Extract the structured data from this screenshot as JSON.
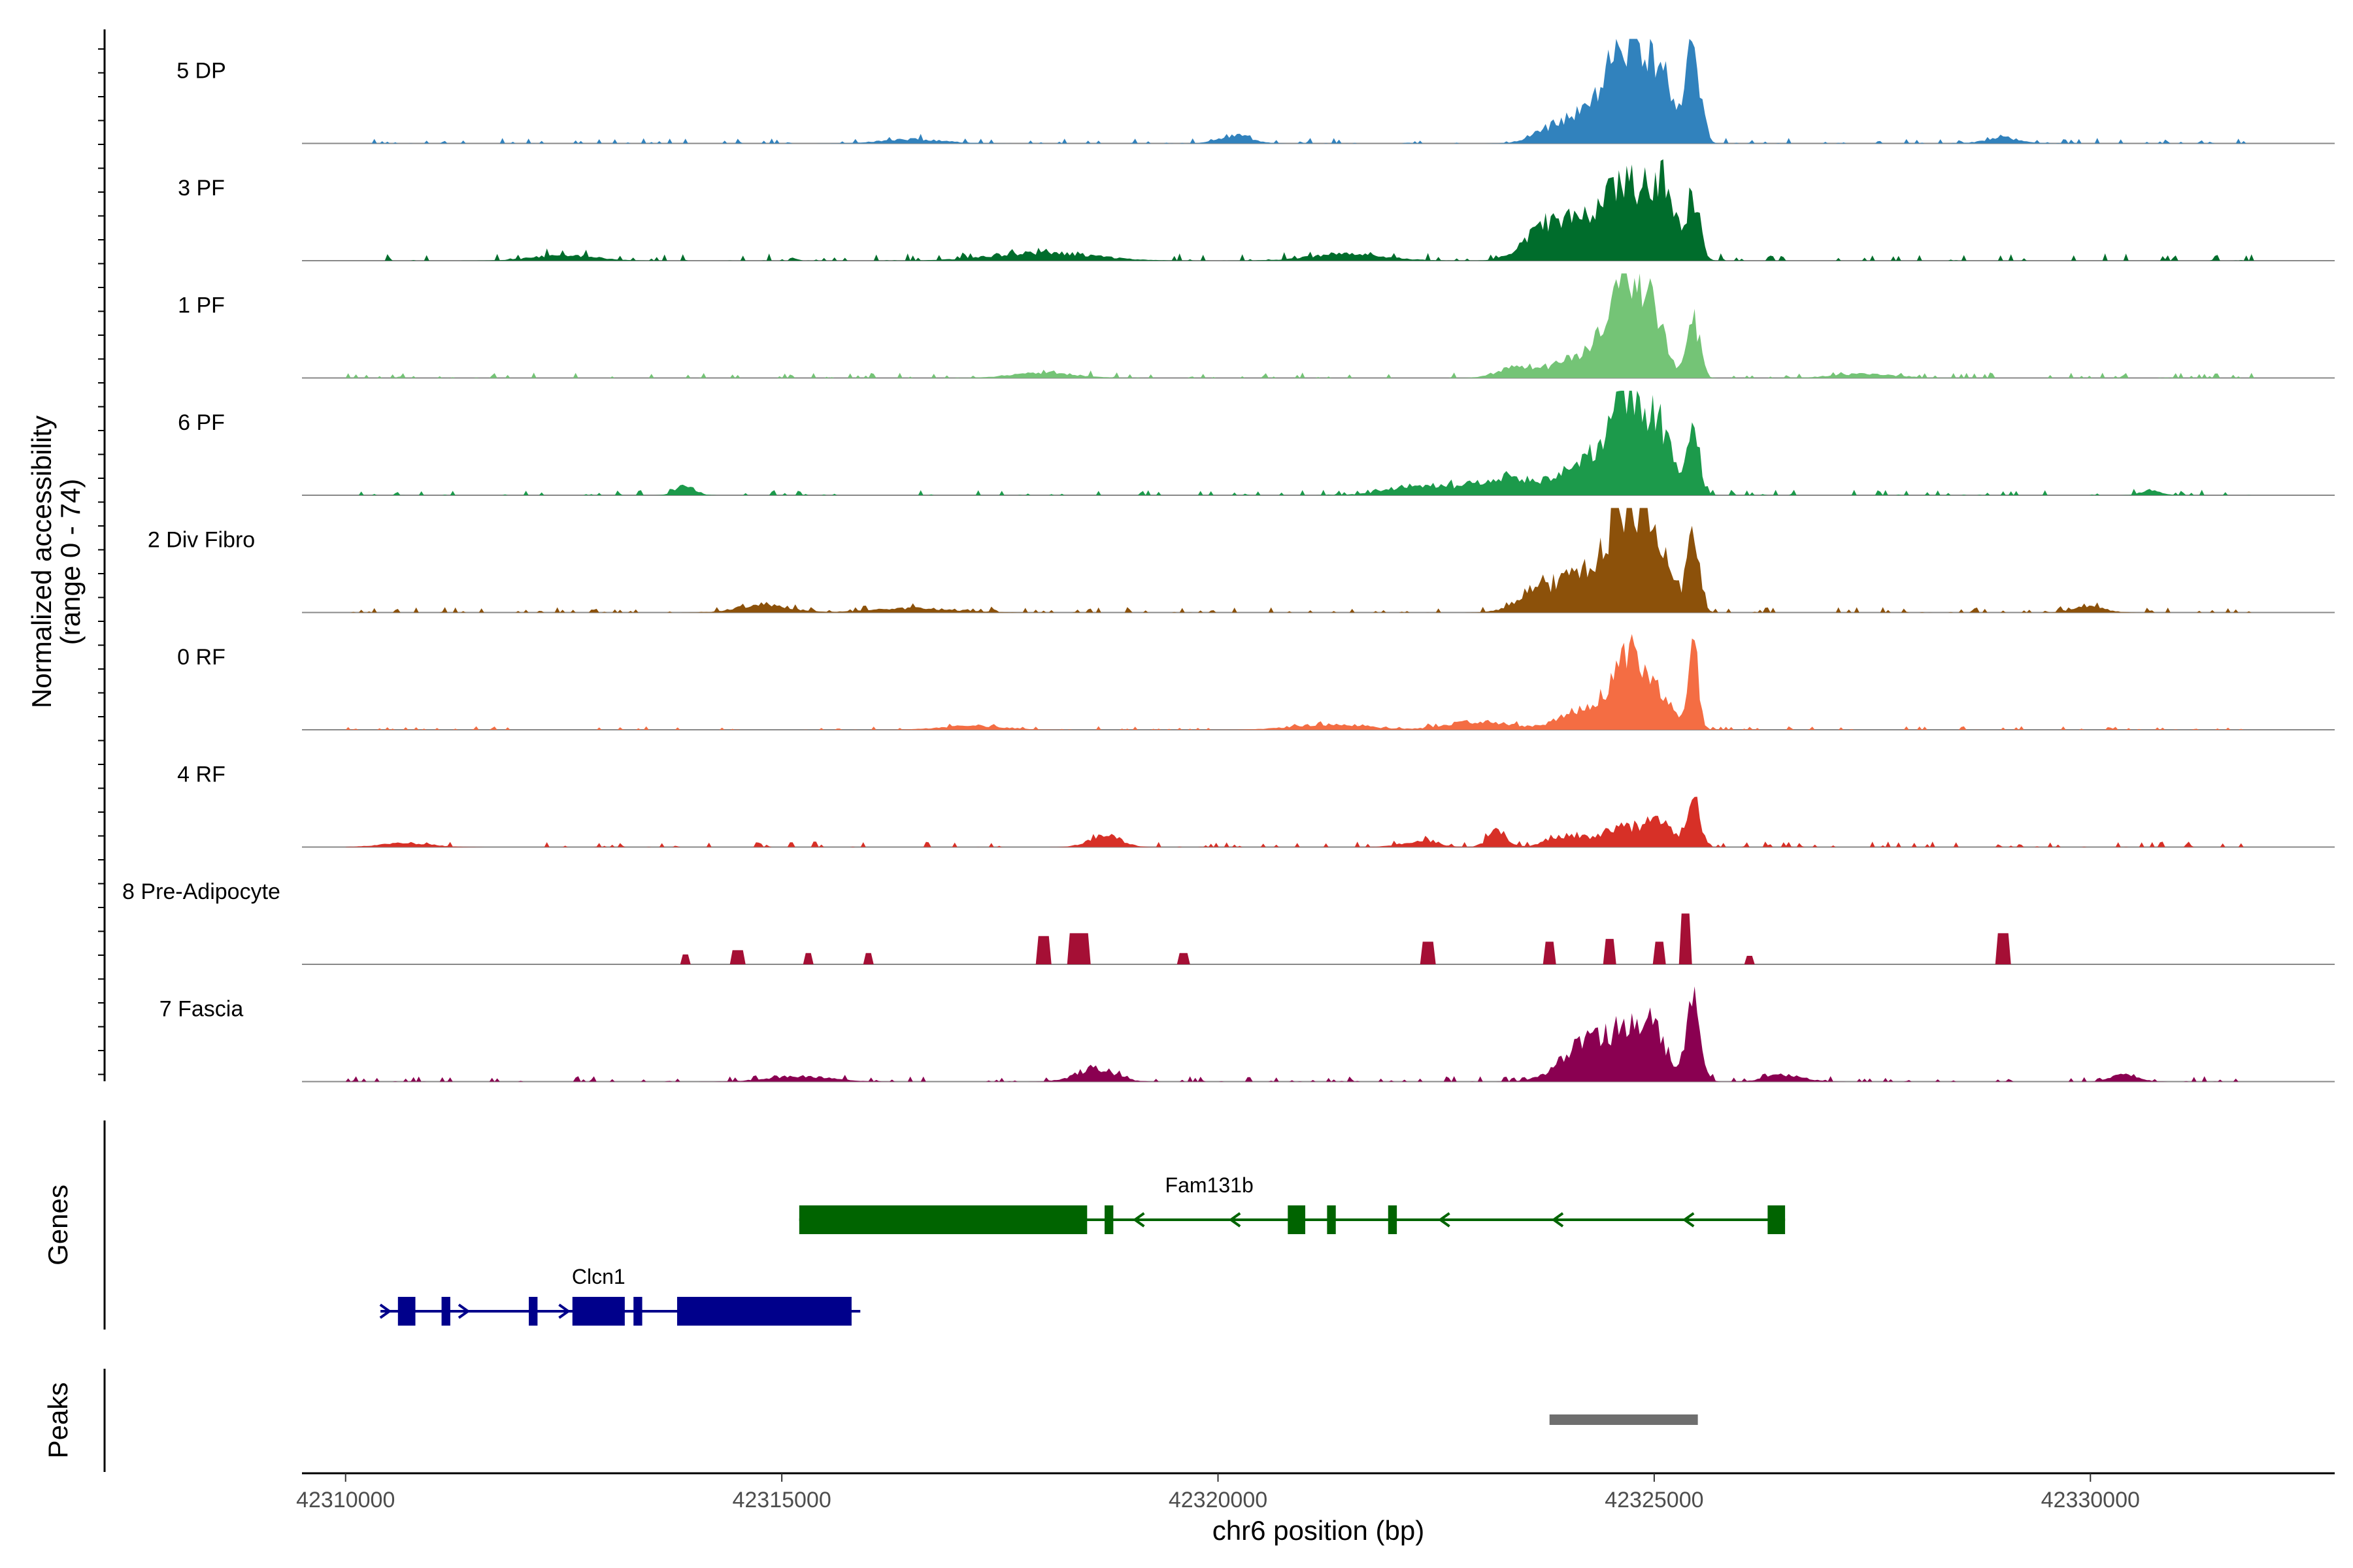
{
  "chart_data": {
    "type": "coverage",
    "region": {
      "chrom": "chr6",
      "start": 42309500,
      "end": 42332800
    },
    "x_axis": {
      "label": "chr6 position (bp)",
      "ticks": [
        42310000,
        42315000,
        42320000,
        42325000,
        42330000
      ],
      "tick_labels": [
        "42310000",
        "42315000",
        "42320000",
        "42325000",
        "42330000"
      ]
    },
    "y_axis": {
      "label_line1": "Normalized accessibility",
      "label_line2": "(range 0 - 74)",
      "range": [
        0,
        74
      ]
    },
    "tracks": [
      {
        "name": "5 DP",
        "color": "#3182bd",
        "bg": 3,
        "peaks": [
          [
            42324700,
            55,
            350
          ],
          [
            42325050,
            38,
            220
          ],
          [
            42325450,
            70,
            110
          ],
          [
            42324400,
            20,
            500
          ],
          [
            42323850,
            8,
            300
          ],
          [
            42320200,
            6,
            250
          ],
          [
            42329000,
            4,
            300
          ],
          [
            42316500,
            3,
            500
          ]
        ]
      },
      {
        "name": "3 PF",
        "color": "#006d2c",
        "bg": 4,
        "peaks": [
          [
            42324700,
            50,
            400
          ],
          [
            42325100,
            40,
            200
          ],
          [
            42325450,
            45,
            100
          ],
          [
            42324100,
            22,
            500
          ],
          [
            42323700,
            14,
            300
          ],
          [
            42318000,
            6,
            800
          ],
          [
            42321500,
            5,
            600
          ],
          [
            42312500,
            4,
            500
          ]
        ]
      },
      {
        "name": "1 PF",
        "color": "#74c476",
        "bg": 3,
        "peaks": [
          [
            42324700,
            62,
            300
          ],
          [
            42325000,
            28,
            200
          ],
          [
            42325450,
            42,
            100
          ],
          [
            42324200,
            16,
            450
          ],
          [
            42323400,
            7,
            300
          ],
          [
            42318000,
            4,
            500
          ],
          [
            42327400,
            3,
            500
          ]
        ]
      },
      {
        "name": "6 PF",
        "color": "#1c9a4b",
        "bg": 3,
        "peaks": [
          [
            42324700,
            62,
            250
          ],
          [
            42325050,
            45,
            220
          ],
          [
            42325450,
            48,
            100
          ],
          [
            42324300,
            26,
            450
          ],
          [
            42323300,
            13,
            500
          ],
          [
            42322300,
            7,
            500
          ],
          [
            42313900,
            7,
            150
          ],
          [
            42330700,
            4,
            150
          ]
        ]
      },
      {
        "name": "2 Div Fibro",
        "color": "#8c510a",
        "bg": 3,
        "peaks": [
          [
            42324700,
            68,
            300
          ],
          [
            42325050,
            32,
            250
          ],
          [
            42325450,
            50,
            100
          ],
          [
            42324200,
            26,
            500
          ],
          [
            42323600,
            10,
            300
          ],
          [
            42314800,
            6,
            400
          ],
          [
            42316500,
            3,
            700
          ],
          [
            42330000,
            4,
            250
          ]
        ]
      },
      {
        "name": "0 RF",
        "color": "#f46d43",
        "bg": 2,
        "peaks": [
          [
            42324700,
            52,
            250
          ],
          [
            42325050,
            24,
            220
          ],
          [
            42325450,
            66,
            80
          ],
          [
            42324200,
            14,
            400
          ],
          [
            42323000,
            6,
            500
          ],
          [
            42321300,
            4,
            600
          ],
          [
            42317200,
            3,
            500
          ]
        ]
      },
      {
        "name": "4 RF",
        "color": "#d73027",
        "bg": 3,
        "peaks": [
          [
            42325450,
            38,
            100
          ],
          [
            42325050,
            18,
            250
          ],
          [
            42324600,
            14,
            300
          ],
          [
            42323200,
            12,
            150
          ],
          [
            42324000,
            8,
            300
          ],
          [
            42318700,
            9,
            250
          ],
          [
            42322300,
            4,
            300
          ],
          [
            42310700,
            3,
            400
          ]
        ]
      },
      {
        "name": "8 Pre-Adipocyte",
        "color": "#a50f35",
        "bg": 0,
        "blocks": true,
        "peaks": [
          [
            42325350,
            36,
            120
          ],
          [
            42325050,
            16,
            120
          ],
          [
            42324500,
            18,
            120
          ],
          [
            42318400,
            22,
            250
          ],
          [
            42318000,
            20,
            150
          ],
          [
            42322400,
            16,
            150
          ],
          [
            42323800,
            16,
            120
          ],
          [
            42329000,
            22,
            150
          ],
          [
            42315300,
            8,
            100
          ],
          [
            42316000,
            8,
            100
          ],
          [
            42314500,
            10,
            150
          ],
          [
            42313900,
            7,
            100
          ],
          [
            42319600,
            8,
            100
          ],
          [
            42326100,
            6,
            100
          ]
        ]
      },
      {
        "name": "7 Fascia",
        "color": "#8a0051",
        "bg": 3,
        "peaks": [
          [
            42325450,
            55,
            120
          ],
          [
            42324950,
            40,
            250
          ],
          [
            42324500,
            30,
            350
          ],
          [
            42324100,
            16,
            350
          ],
          [
            42318600,
            10,
            300
          ],
          [
            42326500,
            5,
            300
          ],
          [
            42330400,
            6,
            200
          ],
          [
            42315200,
            4,
            500
          ]
        ]
      }
    ],
    "genes": [
      {
        "name": "Fam131b",
        "strand": "-",
        "color": "#006400",
        "start": 42315200,
        "end": 42326500,
        "exons": [
          [
            42315200,
            42318500
          ],
          [
            42318700,
            42318800
          ],
          [
            42320800,
            42321000
          ],
          [
            42321250,
            42321350
          ],
          [
            42321950,
            42322050
          ],
          [
            42326300,
            42326500
          ]
        ],
        "arrows": [
          42319100,
          42320200,
          42322600,
          42323900,
          42325400
        ]
      },
      {
        "name": "Clcn1",
        "strand": "+",
        "color": "#00008b",
        "start": 42310400,
        "end": 42315900,
        "exons": [
          [
            42310600,
            42310800
          ],
          [
            42311100,
            42311200
          ],
          [
            42312100,
            42312200
          ],
          [
            42312600,
            42313200
          ],
          [
            42313300,
            42313400
          ],
          [
            42313800,
            42315800
          ]
        ],
        "arrows": [
          42310450,
          42311350,
          42312500
        ]
      }
    ],
    "peaks_track": [
      [
        42323800,
        42325500
      ]
    ],
    "panel_titles": {
      "genes": "Genes",
      "peaks": "Peaks"
    },
    "colors": {
      "baseline": "#888888",
      "axis": "#000000",
      "peak_bar": "#6e6e6e"
    }
  }
}
